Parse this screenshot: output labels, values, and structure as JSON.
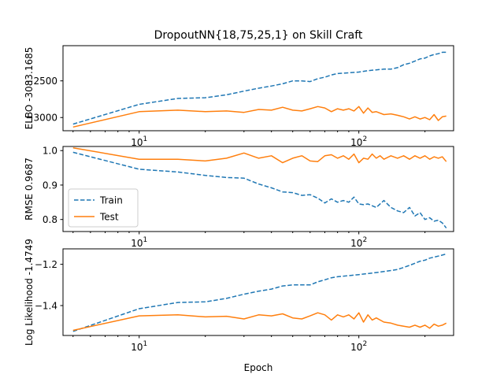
{
  "chart_data": {
    "type": "line",
    "title": "DropoutNN{18,75,25,1} on Skill Craft",
    "xlabel": "Epoch",
    "xscale": "log",
    "xlim": [
      4.5,
      270
    ],
    "x_major_ticks": [
      {
        "value": 10,
        "base": "10",
        "exp": "1"
      },
      {
        "value": 100,
        "base": "10",
        "exp": "2"
      }
    ],
    "legend": {
      "panel": 1,
      "placement": "lower-left",
      "entries": [
        "Train",
        "Test"
      ]
    },
    "series_styles": {
      "Train": {
        "color": "#1f77b4",
        "dash": "dashed"
      },
      "Test": {
        "color": "#ff7f0e",
        "dash": "solid"
      }
    },
    "panels": [
      {
        "ylabel": "ELBO -3083.1685",
        "ylim": [
          -3180,
          -2020
        ],
        "yticks": [
          -2500,
          -3000
        ],
        "ytick_labels": [
          "−2500",
          "−3000"
        ],
        "series": [
          {
            "name": "Train",
            "x": [
              5,
              10,
              15,
              20,
              25,
              30,
              35,
              40,
              45,
              50,
              55,
              60,
              65,
              70,
              75,
              80,
              90,
              100,
              110,
              120,
              130,
              140,
              150,
              160,
              170,
              180,
              190,
              200,
              210,
              220,
              230,
              240,
              250
            ],
            "y": [
              -3090,
              -2820,
              -2740,
              -2730,
              -2690,
              -2640,
              -2600,
              -2570,
              -2540,
              -2500,
              -2500,
              -2510,
              -2470,
              -2450,
              -2420,
              -2400,
              -2390,
              -2380,
              -2360,
              -2350,
              -2340,
              -2340,
              -2320,
              -2280,
              -2260,
              -2230,
              -2200,
              -2190,
              -2160,
              -2140,
              -2130,
              -2110,
              -2110
            ]
          },
          {
            "name": "Test",
            "x": [
              5,
              10,
              15,
              20,
              25,
              30,
              35,
              40,
              45,
              50,
              55,
              60,
              65,
              70,
              75,
              80,
              85,
              90,
              95,
              100,
              105,
              110,
              115,
              120,
              130,
              140,
              150,
              160,
              170,
              180,
              190,
              200,
              210,
              220,
              230,
              240,
              250
            ],
            "y": [
              -3130,
              -2920,
              -2900,
              -2920,
              -2910,
              -2930,
              -2890,
              -2900,
              -2860,
              -2900,
              -2910,
              -2880,
              -2850,
              -2870,
              -2920,
              -2880,
              -2900,
              -2880,
              -2910,
              -2850,
              -2940,
              -2870,
              -2930,
              -2920,
              -2960,
              -2950,
              -2970,
              -2990,
              -3020,
              -2990,
              -3020,
              -3000,
              -3030,
              -2960,
              -3040,
              -2990,
              -2980
            ]
          }
        ]
      },
      {
        "ylabel": "RMSE 0.9687",
        "ylim": [
          0.765,
          1.012
        ],
        "yticks": [
          1.0,
          0.9,
          0.8
        ],
        "ytick_labels": [
          "1.0",
          "0.9",
          "0.8"
        ],
        "series": [
          {
            "name": "Train",
            "x": [
              5,
              10,
              15,
              20,
              25,
              30,
              35,
              40,
              45,
              50,
              55,
              60,
              65,
              70,
              75,
              80,
              85,
              90,
              95,
              100,
              105,
              110,
              120,
              130,
              140,
              150,
              160,
              170,
              180,
              190,
              200,
              210,
              220,
              230,
              240,
              250
            ],
            "y": [
              0.995,
              0.946,
              0.938,
              0.928,
              0.922,
              0.92,
              0.903,
              0.892,
              0.88,
              0.878,
              0.87,
              0.872,
              0.862,
              0.848,
              0.86,
              0.85,
              0.855,
              0.85,
              0.865,
              0.845,
              0.843,
              0.845,
              0.835,
              0.855,
              0.835,
              0.825,
              0.82,
              0.835,
              0.81,
              0.82,
              0.8,
              0.805,
              0.795,
              0.798,
              0.79,
              0.775
            ]
          },
          {
            "name": "Test",
            "x": [
              5,
              10,
              15,
              20,
              25,
              30,
              35,
              40,
              45,
              50,
              55,
              60,
              65,
              70,
              75,
              80,
              85,
              90,
              95,
              100,
              105,
              110,
              115,
              120,
              125,
              130,
              140,
              150,
              160,
              170,
              180,
              190,
              200,
              210,
              220,
              230,
              240,
              250
            ],
            "y": [
              1.008,
              0.975,
              0.975,
              0.97,
              0.978,
              0.993,
              0.978,
              0.985,
              0.965,
              0.978,
              0.985,
              0.97,
              0.968,
              0.985,
              0.988,
              0.978,
              0.985,
              0.975,
              0.99,
              0.965,
              0.978,
              0.975,
              0.99,
              0.978,
              0.985,
              0.975,
              0.985,
              0.978,
              0.985,
              0.975,
              0.985,
              0.978,
              0.985,
              0.975,
              0.982,
              0.978,
              0.982,
              0.968
            ]
          }
        ]
      },
      {
        "ylabel": "Log Likelihood -1.4749",
        "ylim": [
          -1.545,
          -1.125
        ],
        "yticks": [
          -1.2,
          -1.4
        ],
        "ytick_labels": [
          "−1.2",
          "−1.4"
        ],
        "series": [
          {
            "name": "Train",
            "x": [
              5,
              10,
              15,
              20,
              25,
              30,
              35,
              40,
              45,
              50,
              55,
              60,
              65,
              70,
              75,
              80,
              90,
              100,
              110,
              120,
              130,
              140,
              150,
              160,
              170,
              180,
              190,
              200,
              210,
              220,
              230,
              240,
              250
            ],
            "y": [
              -1.525,
              -1.415,
              -1.385,
              -1.382,
              -1.365,
              -1.345,
              -1.33,
              -1.32,
              -1.305,
              -1.3,
              -1.3,
              -1.3,
              -1.285,
              -1.275,
              -1.265,
              -1.26,
              -1.255,
              -1.25,
              -1.245,
              -1.24,
              -1.235,
              -1.23,
              -1.225,
              -1.215,
              -1.205,
              -1.195,
              -1.185,
              -1.18,
              -1.17,
              -1.165,
              -1.16,
              -1.155,
              -1.15
            ]
          },
          {
            "name": "Test",
            "x": [
              5,
              10,
              15,
              20,
              25,
              30,
              35,
              40,
              45,
              50,
              55,
              60,
              65,
              70,
              75,
              80,
              85,
              90,
              95,
              100,
              105,
              110,
              115,
              120,
              130,
              140,
              150,
              160,
              170,
              180,
              190,
              200,
              210,
              220,
              230,
              240,
              250
            ],
            "y": [
              -1.52,
              -1.45,
              -1.445,
              -1.455,
              -1.452,
              -1.465,
              -1.445,
              -1.45,
              -1.44,
              -1.46,
              -1.465,
              -1.45,
              -1.435,
              -1.445,
              -1.47,
              -1.445,
              -1.455,
              -1.445,
              -1.465,
              -1.435,
              -1.48,
              -1.445,
              -1.47,
              -1.46,
              -1.48,
              -1.485,
              -1.495,
              -1.5,
              -1.505,
              -1.495,
              -1.505,
              -1.495,
              -1.51,
              -1.49,
              -1.5,
              -1.495,
              -1.485
            ]
          }
        ]
      }
    ]
  }
}
